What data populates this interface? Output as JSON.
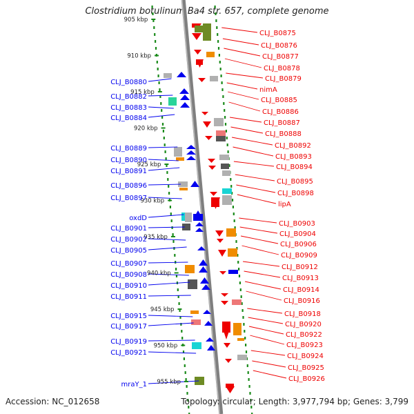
{
  "title": "Clostridium botulinum Ba4 str. 657, complete genome",
  "footer": {
    "accession": "Accession: NC_012658",
    "stats": "Topology: circular; Length: 3,977,794 bp; Genes: 3,799"
  },
  "kbp_labels": [
    "905 kbp",
    "910 kbp",
    "915 kbp",
    "920 kbp",
    "925 kbp",
    "930 kbp",
    "935 kbp",
    "940 kbp",
    "945 kbp",
    "950 kbp",
    "955 kbp"
  ],
  "left_genes": [
    "CLJ_B0880",
    "CLJ_B0882",
    "CLJ_B0883",
    "CLJ_B0884",
    "CLJ_B0889",
    "CLJ_B0890",
    "CLJ_B0891",
    "CLJ_B0896",
    "CLJ_B0897",
    "oxdD",
    "CLJ_B0901",
    "CLJ_B0902",
    "CLJ_B0905",
    "CLJ_B0907",
    "CLJ_B0908",
    "CLJ_B0910",
    "CLJ_B0911",
    "CLJ_B0915",
    "CLJ_B0917",
    "CLJ_B0919",
    "CLJ_B0921",
    "mraY_1"
  ],
  "right_genes": [
    "CLJ_B0875",
    "CLJ_B0876",
    "CLJ_B0877",
    "CLJ_B0878",
    "CLJ_B0879",
    "nimA",
    "CLJ_B0885",
    "CLJ_B0886",
    "CLJ_B0887",
    "CLJ_B0888",
    "CLJ_B0892",
    "CLJ_B0893",
    "CLJ_B0894",
    "CLJ_B0895",
    "CLJ_B0898",
    "lipA",
    "CLJ_B0903",
    "CLJ_B0904",
    "CLJ_B0906",
    "CLJ_B0909",
    "CLJ_B0912",
    "CLJ_B0913",
    "CLJ_B0914",
    "CLJ_B0916",
    "CLJ_B0918",
    "CLJ_B0920",
    "CLJ_B0922",
    "CLJ_B0923",
    "CLJ_B0924",
    "CLJ_B0925",
    "CLJ_B0926"
  ],
  "colors": {
    "forward_strand": "#0000ee",
    "reverse_strand": "#ee0000",
    "backbone": "#7f7f7f",
    "ticks": "#1a8a1a",
    "feature_orange": "#f08c00",
    "feature_olive": "#6e8b24",
    "feature_cyan": "#19d4d4",
    "feature_teal": "#2ad49a",
    "feature_grey": "#b0b0b0",
    "feature_dark": "#555555",
    "feature_pink": "#ee7777"
  }
}
